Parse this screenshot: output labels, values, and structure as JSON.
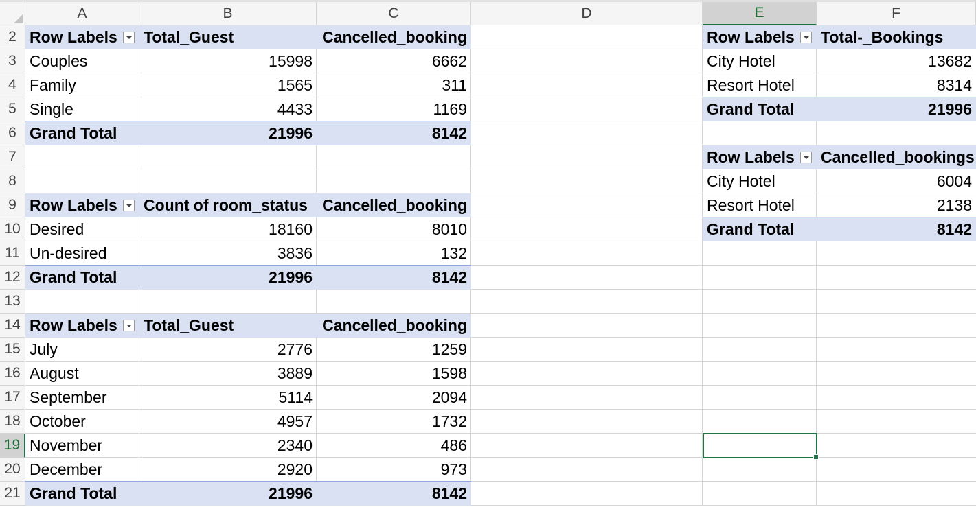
{
  "columns": [
    "A",
    "B",
    "C",
    "D",
    "E",
    "F"
  ],
  "selected_column": "E",
  "rows": [
    "2",
    "3",
    "4",
    "5",
    "6",
    "7",
    "8",
    "9",
    "10",
    "11",
    "12",
    "13",
    "14",
    "15",
    "16",
    "17",
    "18",
    "19",
    "20",
    "21"
  ],
  "selected_row": "19",
  "pivot_guests": {
    "headers": [
      "Row Labels",
      "Total_Guest",
      "Cancelled_booking"
    ],
    "rows": [
      [
        "Couples",
        "15998",
        "6662"
      ],
      [
        "Family",
        "1565",
        "311"
      ],
      [
        "Single",
        "4433",
        "1169"
      ]
    ],
    "total": [
      "Grand Total",
      "21996",
      "8142"
    ]
  },
  "pivot_room_status": {
    "headers": [
      "Row Labels",
      "Count of room_status",
      "Cancelled_booking"
    ],
    "rows": [
      [
        "Desired",
        "18160",
        "8010"
      ],
      [
        "Un-desired",
        "3836",
        "132"
      ]
    ],
    "total": [
      "Grand Total",
      "21996",
      "8142"
    ]
  },
  "pivot_months": {
    "headers": [
      "Row Labels",
      "Total_Guest",
      "Cancelled_booking"
    ],
    "rows": [
      [
        "July",
        "2776",
        "1259"
      ],
      [
        "August",
        "3889",
        "1598"
      ],
      [
        "September",
        "5114",
        "2094"
      ],
      [
        "October",
        "4957",
        "1732"
      ],
      [
        "November",
        "2340",
        "486"
      ],
      [
        "December",
        "2920",
        "973"
      ]
    ],
    "total": [
      "Grand Total",
      "21996",
      "8142"
    ]
  },
  "pivot_hotel_bookings": {
    "headers": [
      "Row Labels",
      "Total-_Bookings"
    ],
    "rows": [
      [
        "City Hotel",
        "13682"
      ],
      [
        "Resort Hotel",
        "8314"
      ]
    ],
    "total": [
      "Grand Total",
      "21996"
    ]
  },
  "pivot_hotel_cancelled": {
    "headers": [
      "Row Labels",
      "Cancelled_bookings"
    ],
    "rows": [
      [
        "City Hotel",
        "6004"
      ],
      [
        "Resort Hotel",
        "2138"
      ]
    ],
    "total": [
      "Grand Total",
      "8142"
    ]
  },
  "colors": {
    "pivot_header_band": "#d9e1f2",
    "selection_green": "#217346",
    "gridline": "#d4d4d4"
  }
}
